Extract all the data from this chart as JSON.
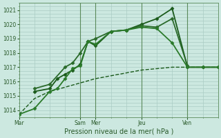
{
  "background_color": "#cce8e0",
  "grid_color": "#aaccc4",
  "xlabel": "Pression niveau de la mer( hPa )",
  "ylim": [
    1013.5,
    1021.5
  ],
  "yticks": [
    1014,
    1015,
    1016,
    1017,
    1018,
    1019,
    1020,
    1021
  ],
  "xtick_labels": [
    "Mar",
    "Sam",
    "Mer",
    "Jeu",
    "Ven"
  ],
  "xtick_positions": [
    0,
    40,
    50,
    80,
    110
  ],
  "xlim": [
    0,
    130
  ],
  "series": [
    {
      "x": [
        0,
        10,
        20,
        30,
        40,
        50,
        60,
        70,
        80,
        90,
        100,
        110,
        120,
        130
      ],
      "y": [
        1013.7,
        1014.8,
        1015.3,
        1015.6,
        1015.9,
        1016.2,
        1016.4,
        1016.6,
        1016.8,
        1016.9,
        1017.0,
        1017.0,
        1017.0,
        1017.0
      ],
      "color": "#1a5a1a",
      "lw": 1.0,
      "marker": null,
      "ls": "--"
    },
    {
      "x": [
        10,
        20,
        25,
        30,
        35,
        40,
        45,
        50,
        60,
        70,
        80,
        90,
        100,
        110,
        120,
        130
      ],
      "y": [
        1015.3,
        1015.5,
        1016.2,
        1016.5,
        1016.8,
        1017.2,
        1018.8,
        1018.5,
        1019.5,
        1019.6,
        1020.0,
        1020.4,
        1021.1,
        1017.0,
        1017.0,
        1017.0
      ],
      "color": "#1a5a1a",
      "lw": 1.3,
      "marker": "D",
      "ms": 2.5,
      "ls": "-"
    },
    {
      "x": [
        10,
        20,
        30,
        35,
        40,
        45,
        50,
        60,
        70,
        80,
        90,
        100,
        110
      ],
      "y": [
        1015.5,
        1015.8,
        1017.0,
        1017.3,
        1018.0,
        1018.8,
        1019.0,
        1019.5,
        1019.6,
        1019.9,
        1019.8,
        1020.4,
        1017.1
      ],
      "color": "#2a6a2a",
      "lw": 1.3,
      "marker": "D",
      "ms": 2.5,
      "ls": "-"
    },
    {
      "x": [
        0,
        10,
        20,
        25,
        30,
        35,
        40,
        45,
        50,
        60,
        70,
        80,
        90,
        100,
        110,
        120,
        130
      ],
      "y": [
        1013.7,
        1014.1,
        1015.3,
        1015.5,
        1016.2,
        1016.9,
        1017.1,
        1018.8,
        1018.6,
        1019.5,
        1019.6,
        1019.8,
        1019.7,
        1018.7,
        1017.0,
        1017.0,
        1017.0
      ],
      "color": "#2a7a2a",
      "lw": 1.3,
      "marker": "D",
      "ms": 2.5,
      "ls": "-"
    }
  ],
  "vlines": [
    40,
    50,
    80,
    110
  ],
  "vline_color": "#5a8a5a",
  "tick_color": "#2a5a2a",
  "label_color": "#2a5a2a",
  "tick_fontsize": 5.5,
  "xlabel_fontsize": 7
}
